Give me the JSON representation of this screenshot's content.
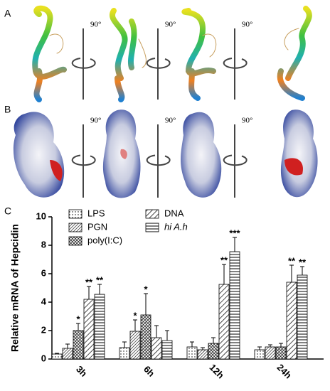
{
  "figure": {
    "panel_labels": [
      "A",
      "B",
      "C"
    ],
    "rotation_labels_a": [
      "90°",
      "90°",
      "90°"
    ],
    "rotation_labels_b": [
      "90°",
      "90°",
      "90°"
    ]
  },
  "chart_data": {
    "type": "bar",
    "y_label": "Relative mRNA of Hepcidin",
    "categories": [
      "3h",
      "6h",
      "12h",
      "24h"
    ],
    "ylim": [
      0,
      10
    ],
    "yticks": [
      0,
      2,
      4,
      6,
      8,
      10
    ],
    "series": [
      {
        "name": "LPS",
        "color": "#000000",
        "pattern": "dots",
        "values": [
          0.35,
          0.8,
          0.85,
          0.65
        ],
        "errors": [
          0.05,
          0.4,
          0.35,
          0.2
        ],
        "stars": [
          null,
          null,
          null,
          null
        ]
      },
      {
        "name": "PGN",
        "color": "#000000",
        "pattern": "diagonal-dense",
        "values": [
          0.75,
          1.95,
          0.65,
          0.85
        ],
        "errors": [
          0.3,
          0.8,
          0.15,
          0.15
        ],
        "stars": [
          null,
          "*",
          null,
          null
        ]
      },
      {
        "name": "poly(I:C)",
        "color": "#000000",
        "pattern": "crosshatch",
        "values": [
          2.0,
          3.1,
          1.1,
          0.85
        ],
        "errors": [
          0.5,
          1.5,
          0.4,
          0.25
        ],
        "stars": [
          "*",
          "*",
          null,
          null
        ]
      },
      {
        "name": "DNA",
        "color": "#000000",
        "pattern": "diagonal",
        "values": [
          4.2,
          1.5,
          5.25,
          5.4
        ],
        "errors": [
          0.9,
          0.85,
          1.4,
          1.2
        ],
        "stars": [
          "**",
          null,
          "**",
          "**"
        ]
      },
      {
        "name": "hi A.h",
        "color": "#000000",
        "pattern": "horizontal",
        "font_style": "italic",
        "values": [
          4.55,
          1.3,
          7.55,
          5.9
        ],
        "errors": [
          0.7,
          0.7,
          1.0,
          0.6
        ],
        "stars": [
          "**",
          null,
          "***",
          "**"
        ]
      }
    ]
  }
}
